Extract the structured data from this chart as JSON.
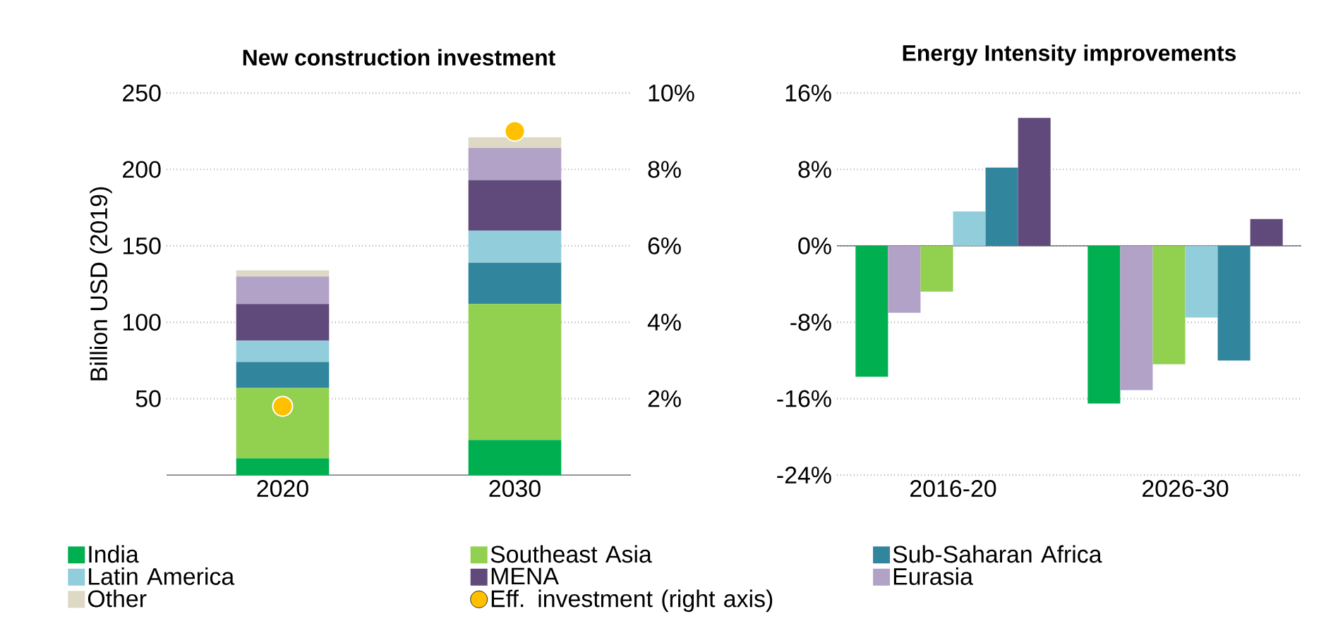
{
  "chart_data": [
    {
      "type": "bar",
      "title": "New construction investment",
      "ylabel": "Billion USD (2019)",
      "categories": [
        "2020",
        "2030"
      ],
      "stacked": true,
      "grid": "y",
      "legend": "bottom",
      "ylim": [
        0,
        250
      ],
      "yticks": [
        50,
        100,
        150,
        200,
        250
      ],
      "y2lim": [
        0,
        10
      ],
      "y2ticks": [
        {
          "value": 2,
          "label": "2%"
        },
        {
          "value": 4,
          "label": "4%"
        },
        {
          "value": 6,
          "label": "6%"
        },
        {
          "value": 8,
          "label": "8%"
        },
        {
          "value": 10,
          "label": "10%"
        }
      ],
      "series": [
        {
          "name": "India",
          "color": "#00b050",
          "values": [
            11,
            23
          ]
        },
        {
          "name": "Southeast Asia",
          "color": "#92d050",
          "values": [
            46,
            89
          ]
        },
        {
          "name": "Sub-Saharan Africa",
          "color": "#31859c",
          "values": [
            17,
            27
          ]
        },
        {
          "name": "Latin America",
          "color": "#92cddc",
          "values": [
            14,
            21
          ]
        },
        {
          "name": "MENA",
          "color": "#604a7b",
          "values": [
            24,
            33
          ]
        },
        {
          "name": "Eurasia",
          "color": "#b3a2c7",
          "values": [
            18,
            21
          ]
        },
        {
          "name": "Other",
          "color": "#ddd9c4",
          "values": [
            4,
            7
          ]
        },
        {
          "name": "Eff. investment (right axis)",
          "type": "scatter",
          "axis": "y2",
          "marker": "circle",
          "color": "#ffc000",
          "values": [
            1.8,
            9.0
          ]
        }
      ]
    },
    {
      "type": "bar",
      "title": "Energy Intensity improvements",
      "categories": [
        "2016-20",
        "2026-30"
      ],
      "grid": "y",
      "ylim": [
        -24,
        16
      ],
      "yticks": [
        {
          "value": -24,
          "label": "-24%"
        },
        {
          "value": -16,
          "label": "-16%"
        },
        {
          "value": -8,
          "label": "-8%"
        },
        {
          "value": 0,
          "label": "0%"
        },
        {
          "value": 8,
          "label": "8%"
        },
        {
          "value": 16,
          "label": "16%"
        }
      ],
      "series": [
        {
          "color": "#00b050",
          "values": [
            -13.7,
            -16.5
          ]
        },
        {
          "color": "#b3a2c7",
          "values": [
            -7.0,
            -15.1
          ]
        },
        {
          "color": "#92d050",
          "values": [
            -4.8,
            -12.4
          ]
        },
        {
          "color": "#92cddc",
          "values": [
            3.6,
            -7.5
          ]
        },
        {
          "color": "#31859c",
          "values": [
            8.2,
            -12.0
          ]
        },
        {
          "color": "#604a7b",
          "values": [
            13.4,
            2.8
          ]
        }
      ]
    }
  ]
}
